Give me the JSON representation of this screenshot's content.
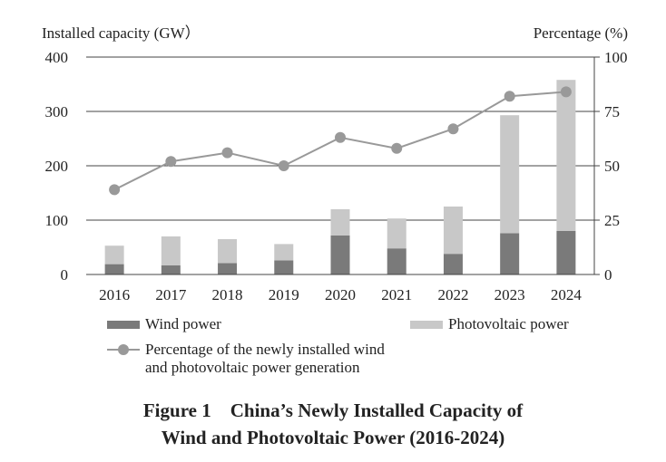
{
  "chart_data": {
    "type": "bar+line",
    "y_left_label": "Installed capacity (GW）",
    "y_right_label": "Percentage (%)",
    "ylim_left": [
      0,
      400
    ],
    "ylim_right": [
      0,
      100
    ],
    "y_left_ticks": [
      "0",
      "100",
      "200",
      "300",
      "400"
    ],
    "y_right_ticks": [
      "0",
      "25",
      "50",
      "75",
      "100"
    ],
    "categories": [
      "2016",
      "2017",
      "2018",
      "2019",
      "2020",
      "2021",
      "2022",
      "2023",
      "2024"
    ],
    "stacked_series": [
      {
        "name": "Wind power",
        "color": "#7a7a7a",
        "values": [
          19,
          17,
          21,
          26,
          72,
          48,
          38,
          76,
          80
        ]
      },
      {
        "name": "Photovoltaic power",
        "color": "#c8c8c8",
        "values": [
          34,
          53,
          44,
          30,
          48,
          55,
          87,
          217,
          278
        ]
      }
    ],
    "line_series": {
      "name": "Percentage of the newly installed wind and photovoltaic power generation",
      "color": "#999999",
      "axis": "right",
      "values": [
        39,
        52,
        56,
        50,
        63,
        58,
        67,
        82,
        84
      ]
    },
    "legend_placement": "bottom",
    "grid": "horizontal at major ticks",
    "caption": {
      "fig_label": "Figure 1",
      "line1": "China’s Newly Installed Capacity of",
      "line2": "Wind and Photovoltaic Power (2016-2024)"
    }
  },
  "legend": {
    "wind_label": "Wind power",
    "pv_label": "Photovoltaic power",
    "line_label_1": "Percentage of the newly installed wind",
    "line_label_2": "and photovoltaic power generation"
  }
}
